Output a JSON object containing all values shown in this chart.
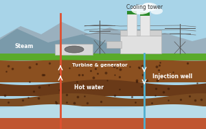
{
  "sky_color": "#a8d4e8",
  "mountain_color1": "#8fa8b8",
  "mountain_color2": "#7090a0",
  "green_color": "#5aaa2a",
  "earth1_color": "#8B5020",
  "earth2_color": "#6a3a18",
  "earth3_color": "#7a4a20",
  "water_color": "#b8dce8",
  "deep_color": "#c05530",
  "hot_well_color": "#e05030",
  "inj_well_color": "#50b0d0",
  "label_cooling": "Cooling tower",
  "label_steam": "Steam",
  "label_turbine": "Turbine & generator",
  "label_hotwater": "Hot water",
  "label_injection": "Injection well",
  "text_color_dark": "#333333",
  "text_color_white": "#ffffff"
}
